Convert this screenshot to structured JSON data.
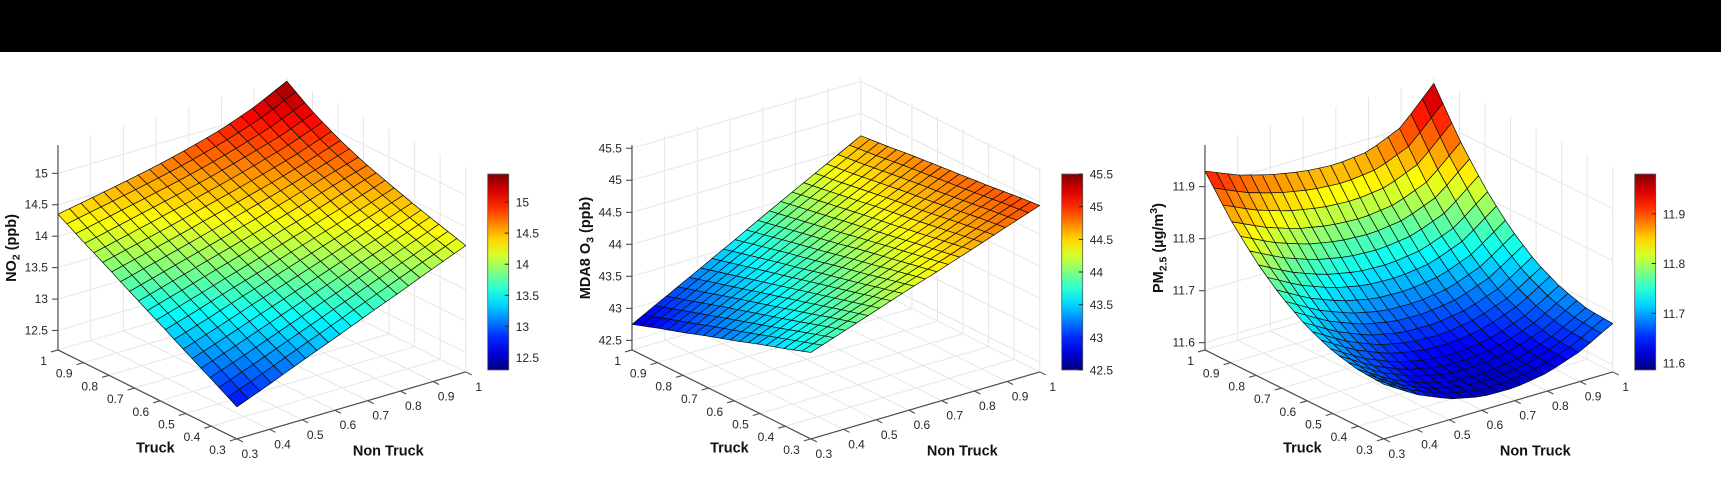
{
  "page": {
    "top_bar_color": "#000000",
    "background_color": "#ffffff",
    "grid_color": "#e6e6e6",
    "axis_color": "#4d4d4d",
    "mesh_edge_color": "#0a0a0a"
  },
  "chart_data": [
    {
      "type": "surface3d",
      "id": "no2",
      "zlabel_parts": [
        {
          "t": "NO"
        },
        {
          "t": "2",
          "sub": true
        },
        {
          "t": " (ppb)"
        }
      ],
      "xlabel": "Non Truck",
      "ylabel": "Truck",
      "x": [
        0.3,
        0.4,
        0.5,
        0.6,
        0.7,
        0.8,
        0.9,
        1
      ],
      "y": [
        0.3,
        0.4,
        0.5,
        0.6,
        0.7,
        0.8,
        0.9,
        1
      ],
      "xticks": [
        0.3,
        0.4,
        0.5,
        0.6,
        0.7,
        0.8,
        0.9,
        1
      ],
      "yticks": [
        0.3,
        0.4,
        0.5,
        0.6,
        0.7,
        0.8,
        0.9,
        1
      ],
      "zticks": [
        12.5,
        13,
        13.5,
        14,
        14.5,
        15
      ],
      "zlim": [
        12.19,
        15.45
      ],
      "caxis": [
        12.3,
        15.45
      ],
      "colorbar_ticks": [
        12.5,
        13,
        13.5,
        14,
        14.5,
        15
      ],
      "z": [
        [
          12.7,
          12.91,
          13.13,
          13.34,
          13.56,
          13.77,
          13.99,
          14.2
        ],
        [
          12.94,
          13.13,
          13.33,
          13.53,
          13.73,
          13.93,
          14.12,
          14.32
        ],
        [
          13.17,
          13.35,
          13.54,
          13.72,
          13.9,
          14.08,
          14.26,
          14.44
        ],
        [
          13.41,
          13.57,
          13.74,
          13.9,
          14.07,
          14.23,
          14.4,
          14.58
        ],
        [
          13.64,
          13.79,
          13.94,
          14.09,
          14.24,
          14.4,
          14.57,
          14.72
        ],
        [
          13.88,
          14.01,
          14.14,
          14.28,
          14.42,
          14.56,
          14.72,
          14.9
        ],
        [
          14.11,
          14.23,
          14.35,
          14.47,
          14.6,
          14.75,
          14.91,
          15.12
        ],
        [
          14.35,
          14.45,
          14.55,
          14.66,
          14.79,
          14.94,
          15.14,
          15.4
        ]
      ]
    },
    {
      "type": "surface3d",
      "id": "mda8-o3",
      "zlabel_parts": [
        {
          "t": "MDA8 O"
        },
        {
          "t": "3",
          "sub": true
        },
        {
          "t": " (ppb)"
        }
      ],
      "xlabel": "Non Truck",
      "ylabel": "Truck",
      "x": [
        0.3,
        0.4,
        0.5,
        0.6,
        0.7,
        0.8,
        0.9,
        1
      ],
      "y": [
        0.3,
        0.4,
        0.5,
        0.6,
        0.7,
        0.8,
        0.9,
        1
      ],
      "xticks": [
        0.3,
        0.4,
        0.5,
        0.6,
        0.7,
        0.8,
        0.9,
        1
      ],
      "yticks": [
        0.3,
        0.4,
        0.5,
        0.6,
        0.7,
        0.8,
        0.9,
        1
      ],
      "zticks": [
        42.5,
        43,
        43.5,
        44,
        44.5,
        45,
        45.5
      ],
      "zlim": [
        42.35,
        45.55
      ],
      "caxis": [
        42.5,
        45.5
      ],
      "colorbar_ticks": [
        42.5,
        43,
        43.5,
        44,
        44.5,
        45,
        45.5
      ],
      "z": [
        [
          43.7,
          43.88,
          44.06,
          44.24,
          44.41,
          44.59,
          44.77,
          44.95
        ],
        [
          43.56,
          43.76,
          43.95,
          44.14,
          44.33,
          44.52,
          44.72,
          44.91
        ],
        [
          43.43,
          43.63,
          43.84,
          44.04,
          44.25,
          44.45,
          44.66,
          44.86
        ],
        [
          43.29,
          43.51,
          43.73,
          43.95,
          44.17,
          44.38,
          44.6,
          44.82
        ],
        [
          43.16,
          43.39,
          43.62,
          43.85,
          44.08,
          44.32,
          44.55,
          44.78
        ],
        [
          43.02,
          43.27,
          43.51,
          43.76,
          44.0,
          44.25,
          44.49,
          44.74
        ],
        [
          42.89,
          43.14,
          43.4,
          43.66,
          43.92,
          44.18,
          44.43,
          44.69
        ],
        [
          42.75,
          43.02,
          43.29,
          43.56,
          43.84,
          44.11,
          44.38,
          44.65
        ]
      ]
    },
    {
      "type": "surface3d",
      "id": "pm25",
      "zlabel_parts": [
        {
          "t": "PM"
        },
        {
          "t": "2.5",
          "sub": true
        },
        {
          "t": " (µg/m"
        },
        {
          "t": "3",
          "sup": true
        },
        {
          "t": ")"
        }
      ],
      "xlabel": "Non Truck",
      "ylabel": "Truck",
      "x": [
        0.3,
        0.4,
        0.5,
        0.6,
        0.7,
        0.8,
        0.9,
        1
      ],
      "y": [
        0.3,
        0.4,
        0.5,
        0.6,
        0.7,
        0.8,
        0.9,
        1
      ],
      "xticks": [
        0.3,
        0.4,
        0.5,
        0.6,
        0.7,
        0.8,
        0.9,
        1
      ],
      "yticks": [
        0.3,
        0.4,
        0.5,
        0.6,
        0.7,
        0.8,
        0.9,
        1
      ],
      "zticks": [
        11.6,
        11.7,
        11.8,
        11.9
      ],
      "zlim": [
        11.586,
        11.98
      ],
      "caxis": [
        11.586,
        11.98
      ],
      "colorbar_ticks": [
        11.6,
        11.7,
        11.8,
        11.9
      ],
      "z": [
        [
          11.691,
          11.653,
          11.626,
          11.612,
          11.611,
          11.621,
          11.644,
          11.679
        ],
        [
          11.694,
          11.656,
          11.63,
          11.616,
          11.615,
          11.625,
          11.648,
          11.683
        ],
        [
          11.706,
          11.669,
          11.643,
          11.629,
          11.627,
          11.637,
          11.661,
          11.698
        ],
        [
          11.728,
          11.692,
          11.666,
          11.653,
          11.651,
          11.661,
          11.684,
          11.724
        ],
        [
          11.761,
          11.726,
          11.702,
          11.688,
          11.686,
          11.695,
          11.72,
          11.764
        ],
        [
          11.805,
          11.773,
          11.75,
          11.737,
          11.734,
          11.743,
          11.768,
          11.818
        ],
        [
          11.861,
          11.832,
          11.811,
          11.799,
          11.795,
          11.803,
          11.829,
          11.886
        ],
        [
          11.93,
          11.904,
          11.886,
          11.874,
          11.869,
          11.876,
          11.904,
          11.97
        ]
      ]
    }
  ]
}
